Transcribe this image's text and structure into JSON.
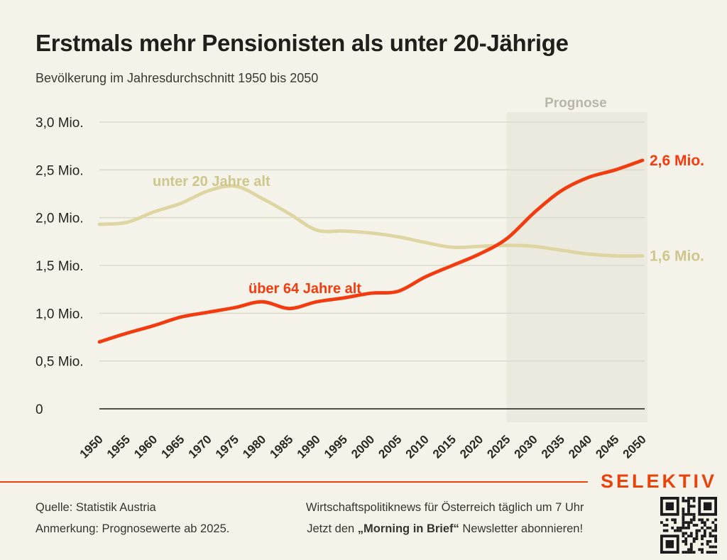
{
  "chart_data": {
    "type": "line",
    "title": "Erstmals mehr Pensionisten als unter 20-Jährige",
    "subtitle": "Bevölkerung im Jahresdurchschnitt 1950 bis 2050",
    "xlabel": "",
    "ylabel": "",
    "xlim": [
      1950,
      2050
    ],
    "ylim": [
      0,
      3.0
    ],
    "ytick_step": 0.5,
    "ytick_labels": [
      "0",
      "0,5 Mio.",
      "1,0 Mio.",
      "1,5 Mio.",
      "2,0 Mio.",
      "2,5 Mio.",
      "3,0 Mio."
    ],
    "grid": "horizontal",
    "legend_position": "inline-labels",
    "categories": [
      1950,
      1955,
      1960,
      1965,
      1970,
      1975,
      1980,
      1985,
      1990,
      1995,
      2000,
      2005,
      2010,
      2015,
      2020,
      2025,
      2030,
      2035,
      2040,
      2045,
      2050
    ],
    "series": [
      {
        "name": "unter 20 Jahre alt",
        "color": "#ddd6a2",
        "label_color": "#cdc78d",
        "end_label": "1,6 Mio.",
        "values": [
          1.93,
          1.95,
          2.06,
          2.15,
          2.28,
          2.33,
          2.2,
          2.04,
          1.87,
          1.86,
          1.84,
          1.8,
          1.74,
          1.69,
          1.7,
          1.71,
          1.7,
          1.66,
          1.62,
          1.6,
          1.6
        ]
      },
      {
        "name": "über 64 Jahre alt",
        "color": "#f23b0f",
        "label_color": "#f23b0f",
        "end_label": "2,6 Mio.",
        "values": [
          0.7,
          0.79,
          0.87,
          0.96,
          1.01,
          1.06,
          1.12,
          1.05,
          1.12,
          1.16,
          1.21,
          1.23,
          1.38,
          1.5,
          1.62,
          1.78,
          2.05,
          2.28,
          2.42,
          2.5,
          2.6
        ]
      }
    ],
    "prognose": {
      "label": "Prognose",
      "start_year": 2025,
      "band_color": "#eceadf"
    }
  },
  "footer": {
    "source": "Quelle: Statistik Austria",
    "note": "Anmerkung: Prognosewerte ab 2025.",
    "newsletter_line1": "Wirtschaftspolitiknews für Österreich täglich um 7 Uhr",
    "newsletter_line2_prefix": "Jetzt den ",
    "newsletter_line2_bold": "„Morning in Brief“",
    "newsletter_line2_suffix": " Newsletter abonnieren!"
  },
  "branding": {
    "logo": "SELEKTIV",
    "color": "#e8430b"
  }
}
